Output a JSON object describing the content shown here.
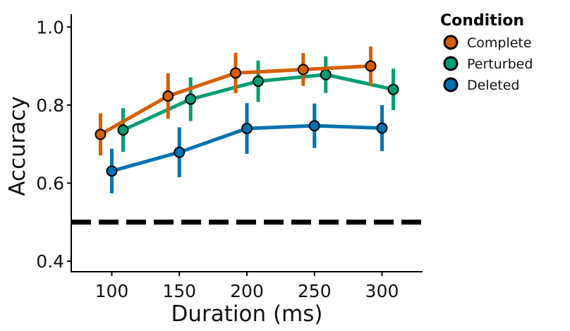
{
  "chart_data": {
    "type": "line",
    "title": "",
    "xlabel": "Duration (ms)",
    "ylabel": "Accuracy",
    "x": [
      100,
      150,
      200,
      250,
      300
    ],
    "xticks": [
      "100",
      "150",
      "200",
      "250",
      "300"
    ],
    "yticks": [
      "0.4",
      "0.6",
      "0.8",
      "1.0"
    ],
    "ytick_values": [
      0.4,
      0.6,
      0.8,
      1.0
    ],
    "xtick_values": [
      100,
      150,
      200,
      250,
      300
    ],
    "xlim": [
      70,
      330
    ],
    "ylim": [
      0.373,
      1.033
    ],
    "grid": false,
    "reference_line": {
      "y": 0.5,
      "style": "dashed",
      "color": "#000000"
    },
    "legend": {
      "title": "Condition",
      "placement": "outside-top-right"
    },
    "series": [
      {
        "name": "Complete",
        "color": "#D55E00",
        "values": [
          0.725,
          0.823,
          0.882,
          0.891,
          0.9
        ],
        "error": [
          0.054,
          0.058,
          0.052,
          0.042,
          0.05
        ]
      },
      {
        "name": "Perturbed",
        "color": "#009E73",
        "values": [
          0.736,
          0.815,
          0.861,
          0.878,
          0.84
        ],
        "error": [
          0.056,
          0.056,
          0.053,
          0.047,
          0.053
        ]
      },
      {
        "name": "Deleted",
        "color": "#0072B2",
        "values": [
          0.631,
          0.679,
          0.74,
          0.747,
          0.741
        ],
        "error": [
          0.057,
          0.064,
          0.065,
          0.057,
          0.059
        ]
      }
    ]
  }
}
